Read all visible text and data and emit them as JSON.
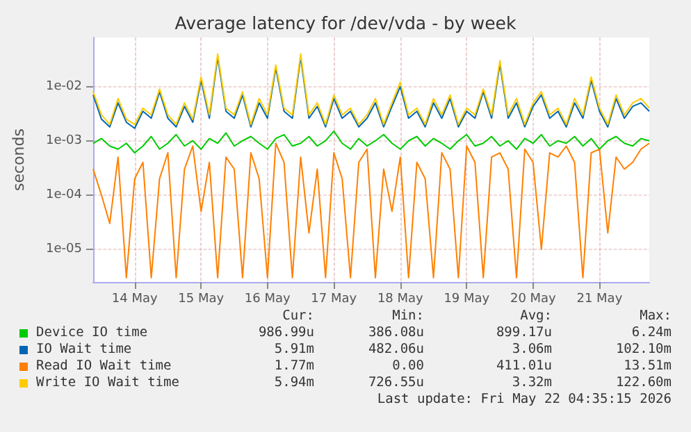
{
  "chart_data": {
    "type": "line",
    "title": "Average latency for /dev/vda - by week",
    "ylabel": "seconds",
    "log": "y",
    "grid": true,
    "legend": "bottom",
    "marker": "none",
    "line_style": "solid",
    "x": [
      "2026-05-13T21:00",
      "2026-05-14T00:00",
      "2026-05-14T03:00",
      "2026-05-14T06:00",
      "2026-05-14T09:00",
      "2026-05-14T12:00",
      "2026-05-14T15:00",
      "2026-05-14T18:00",
      "2026-05-14T21:00",
      "2026-05-15T00:00",
      "2026-05-15T03:00",
      "2026-05-15T06:00",
      "2026-05-15T09:00",
      "2026-05-15T12:00",
      "2026-05-15T15:00",
      "2026-05-15T18:00",
      "2026-05-15T21:00",
      "2026-05-16T00:00",
      "2026-05-16T03:00",
      "2026-05-16T06:00",
      "2026-05-16T09:00",
      "2026-05-16T12:00",
      "2026-05-16T15:00",
      "2026-05-16T18:00",
      "2026-05-16T21:00",
      "2026-05-17T00:00",
      "2026-05-17T03:00",
      "2026-05-17T06:00",
      "2026-05-17T09:00",
      "2026-05-17T12:00",
      "2026-05-17T15:00",
      "2026-05-17T18:00",
      "2026-05-17T21:00",
      "2026-05-18T00:00",
      "2026-05-18T03:00",
      "2026-05-18T06:00",
      "2026-05-18T09:00",
      "2026-05-18T12:00",
      "2026-05-18T15:00",
      "2026-05-18T18:00",
      "2026-05-18T21:00",
      "2026-05-19T00:00",
      "2026-05-19T03:00",
      "2026-05-19T06:00",
      "2026-05-19T09:00",
      "2026-05-19T12:00",
      "2026-05-19T15:00",
      "2026-05-19T18:00",
      "2026-05-19T21:00",
      "2026-05-20T00:00",
      "2026-05-20T03:00",
      "2026-05-20T06:00",
      "2026-05-20T09:00",
      "2026-05-20T12:00",
      "2026-05-20T15:00",
      "2026-05-20T18:00",
      "2026-05-20T21:00",
      "2026-05-21T00:00",
      "2026-05-21T03:00",
      "2026-05-21T06:00",
      "2026-05-21T09:00",
      "2026-05-21T12:00",
      "2026-05-21T15:00",
      "2026-05-21T18:00",
      "2026-05-21T21:00",
      "2026-05-22T00:00",
      "2026-05-22T03:00",
      "2026-05-22T06:00"
    ],
    "xlim": [
      "2026-05-13T21:00",
      "2026-05-22T06:00"
    ],
    "xticks": [
      {
        "value": "2026-05-14T12:00",
        "label": "14 May"
      },
      {
        "value": "2026-05-15T12:00",
        "label": "15 May"
      },
      {
        "value": "2026-05-16T12:00",
        "label": "16 May"
      },
      {
        "value": "2026-05-17T12:00",
        "label": "17 May"
      },
      {
        "value": "2026-05-18T12:00",
        "label": "18 May"
      },
      {
        "value": "2026-05-19T12:00",
        "label": "19 May"
      },
      {
        "value": "2026-05-20T12:00",
        "label": "20 May"
      },
      {
        "value": "2026-05-21T12:00",
        "label": "21 May"
      }
    ],
    "ylim": [
      2.5e-06,
      0.08
    ],
    "yticks": [
      {
        "value": 1e-05,
        "label": "1e-05"
      },
      {
        "value": 0.0001,
        "label": "1e-04"
      },
      {
        "value": 0.001,
        "label": "1e-03"
      },
      {
        "value": 0.01,
        "label": "1e-02"
      }
    ],
    "series": [
      {
        "name": "Device IO time",
        "color": "#00cc00",
        "values": [
          0.0009,
          0.0011,
          0.0008,
          0.0007,
          0.0009,
          0.0006,
          0.0008,
          0.0012,
          0.0007,
          0.0009,
          0.0013,
          0.0008,
          0.001,
          0.0007,
          0.0011,
          0.0009,
          0.0014,
          0.0008,
          0.001,
          0.0012,
          0.0009,
          0.0007,
          0.0011,
          0.0013,
          0.0008,
          0.0009,
          0.0012,
          0.0008,
          0.001,
          0.0015,
          0.0009,
          0.0007,
          0.0011,
          0.0008,
          0.001,
          0.0013,
          0.0009,
          0.0007,
          0.001,
          0.0012,
          0.0008,
          0.0011,
          0.0009,
          0.0007,
          0.001,
          0.0013,
          0.0008,
          0.0009,
          0.0012,
          0.0008,
          0.001,
          0.0007,
          0.0011,
          0.0009,
          0.0013,
          0.0008,
          0.001,
          0.0009,
          0.0012,
          0.0008,
          0.0011,
          0.0007,
          0.001,
          0.0012,
          0.0009,
          0.0008,
          0.0011,
          0.001
        ]
      },
      {
        "name": "IO Wait time",
        "color": "#0066b3",
        "values": [
          0.007,
          0.0025,
          0.0018,
          0.005,
          0.0022,
          0.0017,
          0.0035,
          0.0026,
          0.008,
          0.0026,
          0.0018,
          0.0043,
          0.0022,
          0.013,
          0.0026,
          0.035,
          0.0035,
          0.0026,
          0.007,
          0.0018,
          0.005,
          0.0026,
          0.022,
          0.0035,
          0.0026,
          0.035,
          0.0026,
          0.0043,
          0.0018,
          0.006,
          0.0026,
          0.0035,
          0.0018,
          0.0026,
          0.005,
          0.0018,
          0.0043,
          0.01,
          0.0026,
          0.0035,
          0.0018,
          0.005,
          0.0026,
          0.006,
          0.0018,
          0.0035,
          0.0026,
          0.008,
          0.0026,
          0.026,
          0.0026,
          0.005,
          0.0018,
          0.0043,
          0.007,
          0.0026,
          0.0035,
          0.0018,
          0.005,
          0.0026,
          0.013,
          0.0035,
          0.0018,
          0.006,
          0.0026,
          0.0043,
          0.005,
          0.0035
        ]
      },
      {
        "name": "Read IO Wait time",
        "color": "#ff8000",
        "values": [
          0.0003,
          0.0001,
          3e-05,
          0.0005,
          3e-06,
          0.0002,
          0.0004,
          3e-06,
          0.0002,
          0.0006,
          3e-06,
          0.0003,
          0.0008,
          5e-05,
          0.0004,
          3e-06,
          0.0005,
          0.0003,
          3e-06,
          0.0006,
          0.0002,
          3e-06,
          0.0009,
          0.0004,
          3e-06,
          0.0005,
          2e-05,
          0.0003,
          3e-06,
          0.0006,
          0.0002,
          3e-06,
          0.0004,
          0.0007,
          3e-06,
          0.0003,
          5e-05,
          0.0005,
          3e-06,
          0.0004,
          0.0002,
          3e-06,
          0.0006,
          0.0003,
          3e-06,
          0.0008,
          0.0004,
          3e-06,
          0.0005,
          0.0006,
          0.0003,
          3e-06,
          0.0007,
          0.0004,
          1e-05,
          0.0006,
          0.0005,
          0.0008,
          0.0004,
          3e-06,
          0.0006,
          0.0007,
          2e-05,
          0.0005,
          0.0003,
          0.0004,
          0.0007,
          0.0009
        ]
      },
      {
        "name": "Write IO Wait time",
        "color": "#ffcc00",
        "values": [
          0.008,
          0.003,
          0.002,
          0.006,
          0.0025,
          0.002,
          0.004,
          0.003,
          0.009,
          0.003,
          0.002,
          0.005,
          0.0025,
          0.015,
          0.003,
          0.04,
          0.004,
          0.003,
          0.008,
          0.002,
          0.006,
          0.003,
          0.025,
          0.004,
          0.003,
          0.04,
          0.003,
          0.005,
          0.002,
          0.007,
          0.003,
          0.004,
          0.002,
          0.003,
          0.006,
          0.002,
          0.005,
          0.012,
          0.003,
          0.004,
          0.002,
          0.006,
          0.003,
          0.007,
          0.002,
          0.004,
          0.003,
          0.009,
          0.003,
          0.03,
          0.003,
          0.006,
          0.002,
          0.005,
          0.008,
          0.003,
          0.004,
          0.002,
          0.006,
          0.003,
          0.015,
          0.004,
          0.002,
          0.007,
          0.003,
          0.005,
          0.006,
          0.004
        ]
      }
    ],
    "annotations": [
      "Cur:",
      "Min:",
      "Avg:",
      "Max:",
      "986.99u",
      "386.08u",
      "899.17u",
      "6.24m",
      "5.91m",
      "482.06u",
      "3.06m",
      "102.10m",
      "1.77m",
      "0.00",
      "411.01u",
      "13.51m",
      "5.94m",
      "726.55u",
      "3.32m",
      "122.60m",
      "Last update: Fri May 22 04:35:15 2026"
    ]
  }
}
